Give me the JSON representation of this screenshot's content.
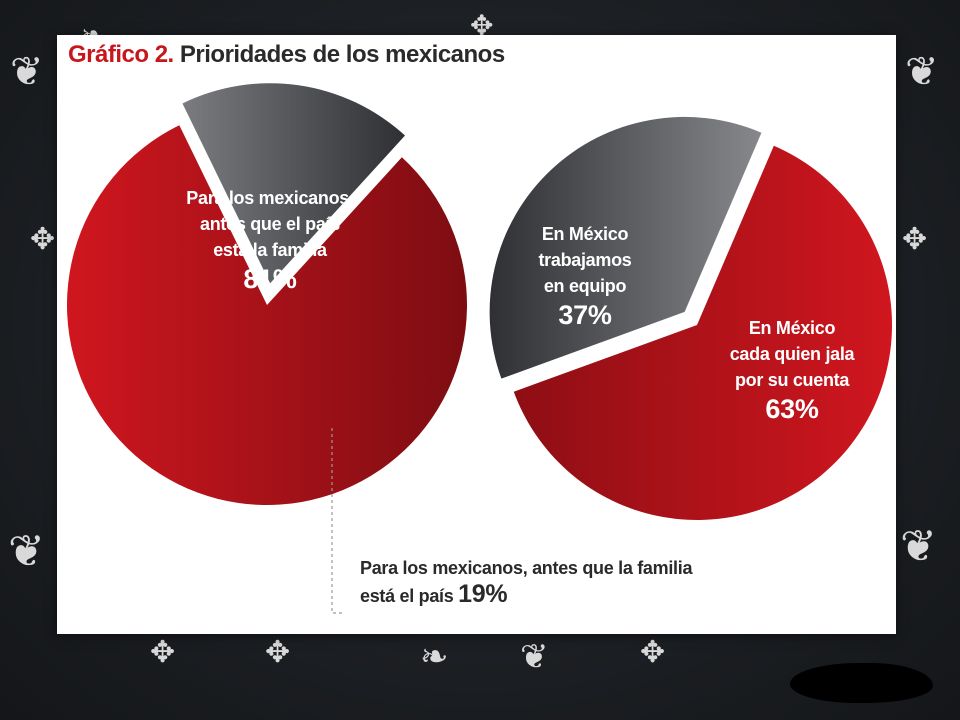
{
  "chart_data": [
    {
      "type": "pie",
      "title_prefix": "Gráfico 2.",
      "title": "Prioridades de los mexicanos",
      "slices": [
        {
          "label": "Para los mexicanos, antes que el país está la familia",
          "value": 81,
          "value_text": "81%",
          "color": "#b5121b"
        },
        {
          "label": "Para los mexicanos, antes que la familia está el país",
          "value": 19,
          "value_text": "19%",
          "color": "#5f6166"
        }
      ]
    },
    {
      "type": "pie",
      "slices": [
        {
          "label": "En México trabajamos en equipo",
          "value": 37,
          "value_text": "37%",
          "color": "#5f6166"
        },
        {
          "label": "En México cada quien jala por su cuenta",
          "value": 63,
          "value_text": "63%",
          "color": "#b5121b"
        }
      ]
    }
  ],
  "labels": {
    "familia_lines": [
      "Para los mexicanos,",
      "antes que el país",
      "está la familia"
    ],
    "equipo_lines": [
      "En México",
      "trabajamos",
      "en equipo"
    ],
    "cuenta_lines": [
      "En México",
      "cada quien jala",
      "por su cuenta"
    ],
    "pais_line1": "Para los mexicanos, antes que la familia",
    "pais_line2": "está el país"
  },
  "colors": {
    "red": "#b5121b",
    "red_dark": "#7d0d12",
    "gray": "#5f6166",
    "gray_dark": "#2e3033",
    "background": "#1d2024"
  }
}
